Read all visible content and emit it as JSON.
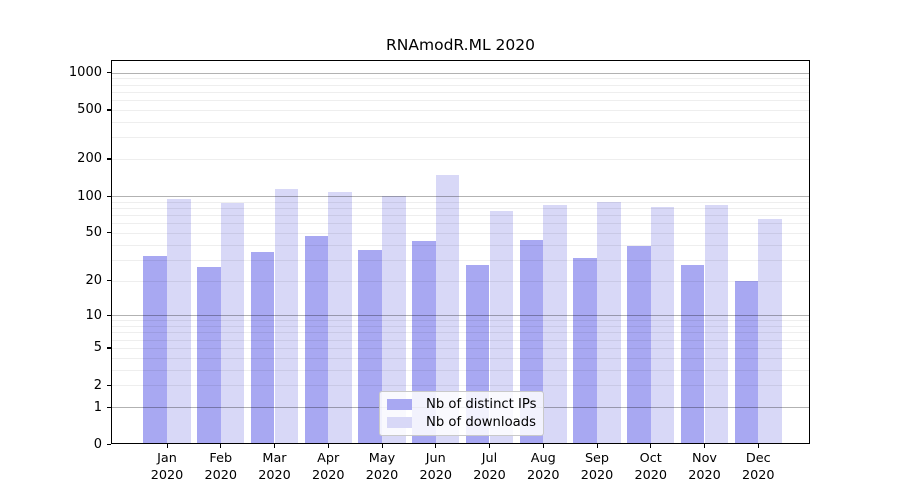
{
  "chart_data": {
    "type": "bar",
    "title": "RNAmodR.ML 2020",
    "categories": [
      "Jan 2020",
      "Feb 2020",
      "Mar 2020",
      "Apr 2020",
      "May 2020",
      "Jun 2020",
      "Jul 2020",
      "Aug 2020",
      "Sep 2020",
      "Oct 2020",
      "Nov 2020",
      "Dec 2020"
    ],
    "series": [
      {
        "name": "Nb of distinct IPs",
        "color": "#a8a8f2",
        "values": [
          32,
          26,
          35,
          47,
          36,
          43,
          27,
          44,
          31,
          39,
          27,
          20
        ]
      },
      {
        "name": "Nb of downloads",
        "color": "#d8d8f7",
        "values": [
          94,
          88,
          115,
          108,
          100,
          148,
          75,
          84,
          90,
          82,
          84,
          65
        ]
      }
    ],
    "yscale": "log1p",
    "yticks": [
      0,
      1,
      2,
      5,
      10,
      20,
      50,
      100,
      200,
      500,
      1000
    ],
    "ylim": [
      0,
      1265
    ],
    "xlabel": "",
    "ylabel": "",
    "grid": "both",
    "legend_position": "lower center",
    "colors": {
      "major_grid": "#b0b0b0",
      "minor_grid": "#ececec",
      "axis": "#000000",
      "background": "#ffffff"
    }
  }
}
